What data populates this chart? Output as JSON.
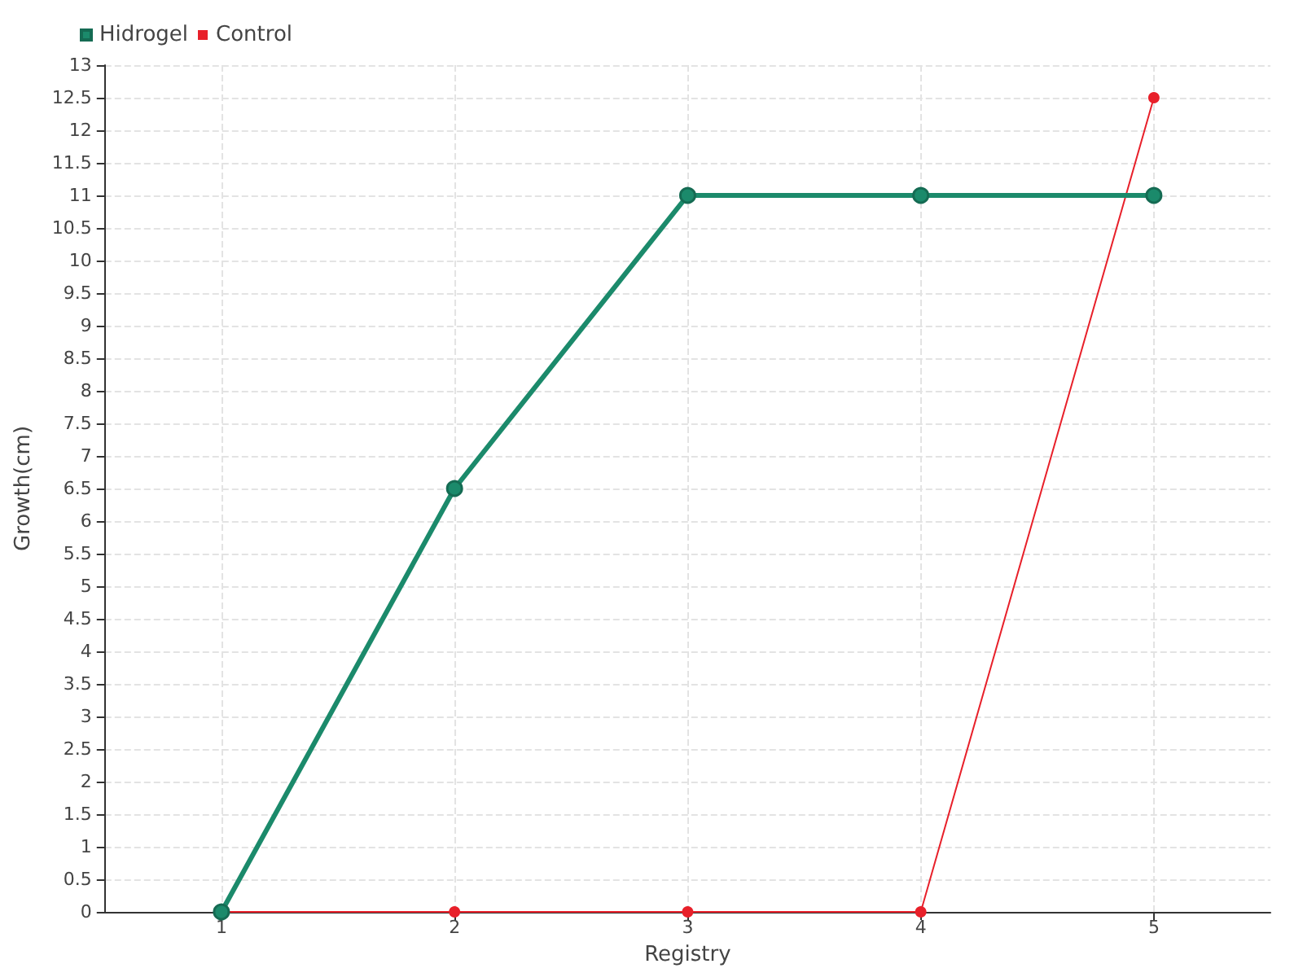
{
  "chart_data": {
    "type": "line",
    "xlabel": "Registry",
    "ylabel": "Growth(cm)",
    "x": [
      1,
      2,
      3,
      4,
      5
    ],
    "xlim": [
      0.5,
      5.5
    ],
    "xticks": [
      1,
      2,
      3,
      4,
      5
    ],
    "ylim": [
      0,
      13
    ],
    "yticks": [
      0,
      0.5,
      1,
      1.5,
      2,
      2.5,
      3,
      3.5,
      4,
      4.5,
      5,
      5.5,
      6,
      6.5,
      7,
      7.5,
      8,
      8.5,
      9,
      9.5,
      10,
      10.5,
      11,
      11.5,
      12,
      12.5,
      13
    ],
    "series": [
      {
        "name": "Hidrogel",
        "color": "#1b8a6b",
        "values": [
          0,
          6.5,
          11,
          11,
          11
        ]
      },
      {
        "name": "Control",
        "color": "#e8202a",
        "values": [
          0,
          0,
          0,
          0,
          12.5
        ]
      }
    ],
    "grid": true,
    "legend": "top left",
    "marker": "circle",
    "line_style": "solid"
  }
}
